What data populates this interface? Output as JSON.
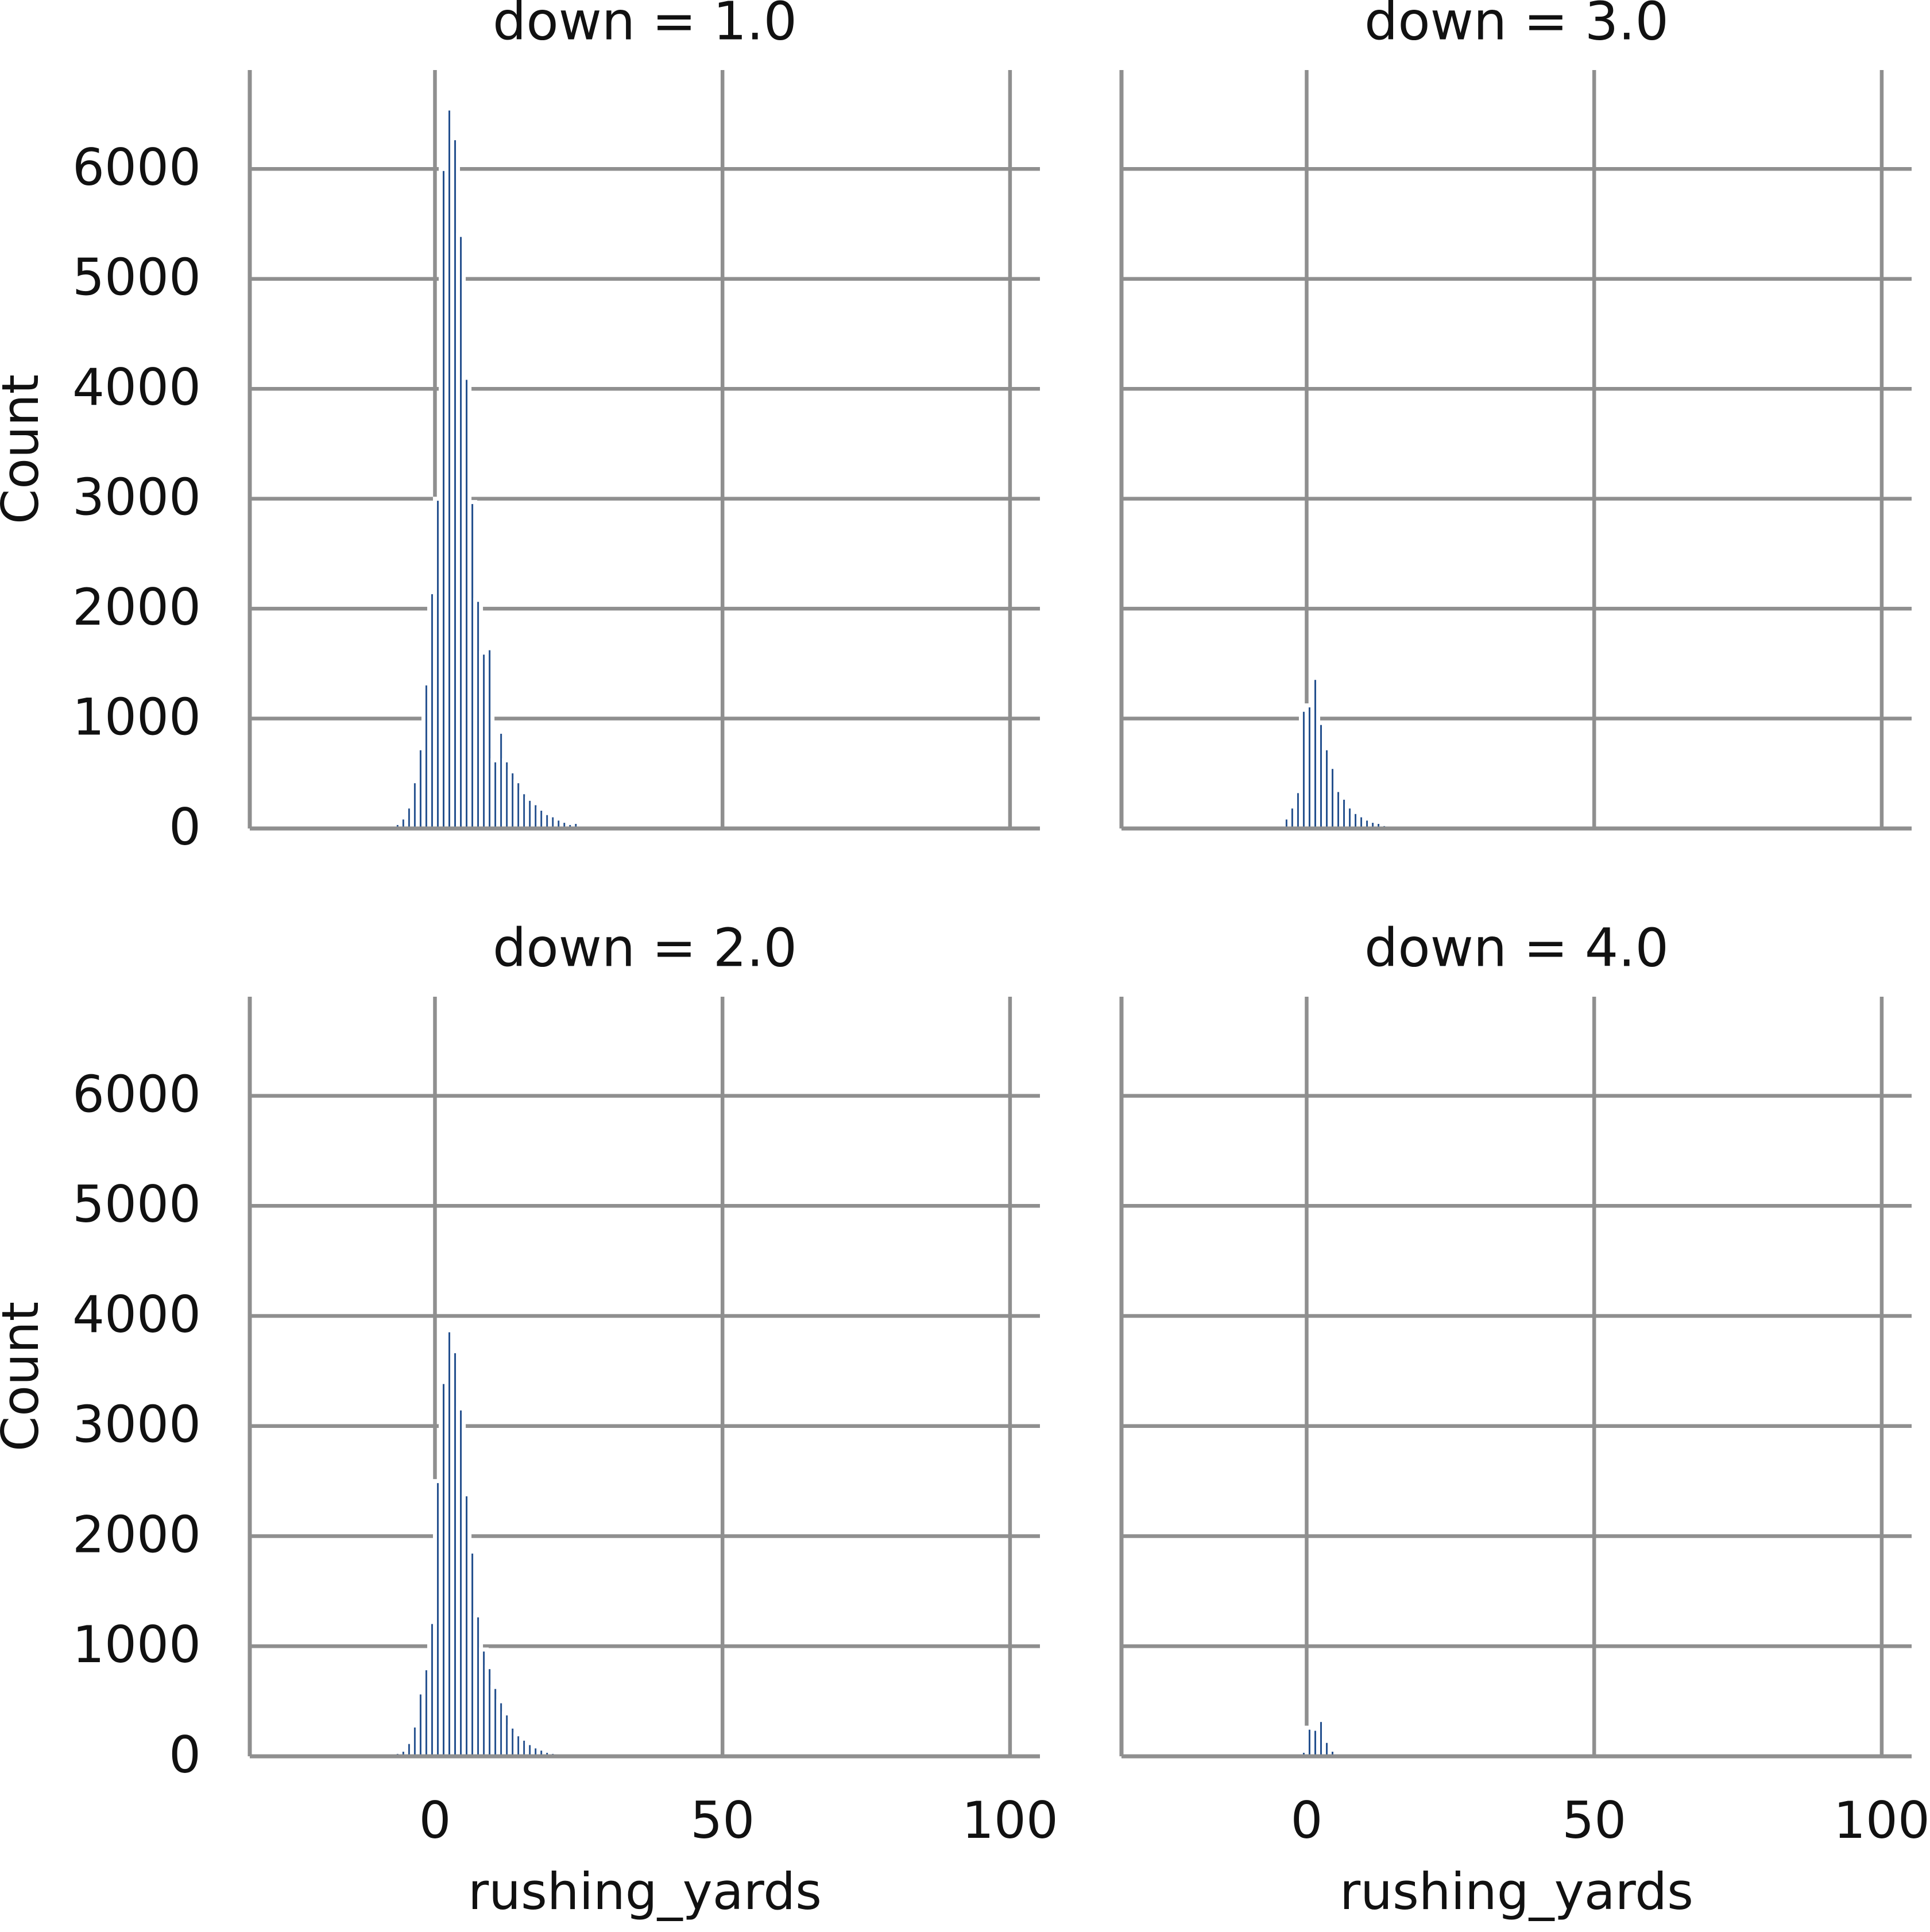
{
  "chart_data": [
    {
      "type": "histogram",
      "title": "down = 1.0",
      "color": "#24508e",
      "grid": true,
      "ylabel": "Count",
      "show_ytick_labels": true,
      "show_xtick_labels": false,
      "bins": [
        -8,
        -7,
        -6,
        -5,
        -4,
        -3,
        -2,
        -1,
        0,
        1,
        2,
        3,
        4,
        5,
        6,
        7,
        8,
        9,
        10,
        11,
        12,
        13,
        14,
        15,
        16,
        17,
        18,
        19,
        20,
        21,
        22,
        23,
        24,
        25,
        26,
        27,
        28,
        29,
        30,
        31,
        32,
        33,
        34,
        35,
        36
      ],
      "counts": [
        20,
        50,
        100,
        200,
        430,
        730,
        1320,
        2150,
        3000,
        6000,
        6550,
        6280,
        5400,
        4100,
        2970,
        2080,
        1600,
        1640,
        620,
        880,
        620,
        520,
        430,
        330,
        270,
        230,
        180,
        140,
        120,
        90,
        70,
        50,
        60,
        30,
        25,
        25,
        20,
        15,
        12,
        10,
        8,
        6,
        5,
        4
      ],
      "xlim": [
        -32.2,
        105.2
      ],
      "ylim": [
        0,
        6900
      ],
      "xticks": [
        0,
        50,
        100
      ],
      "yticks": [
        0,
        1000,
        2000,
        3000,
        4000,
        5000,
        6000
      ]
    },
    {
      "type": "histogram",
      "title": "down = 3.0",
      "color": "#24508e",
      "grid": true,
      "show_ytick_labels": false,
      "show_xtick_labels": false,
      "bins": [
        -5,
        -4,
        -3,
        -2,
        -1,
        0,
        1,
        2,
        3,
        4,
        5,
        6,
        7,
        8,
        9,
        10,
        11,
        12,
        13,
        14,
        15,
        16,
        17
      ],
      "counts": [
        20,
        100,
        200,
        340,
        1080,
        1120,
        1370,
        960,
        730,
        560,
        350,
        280,
        200,
        150,
        120,
        90,
        70,
        60,
        40,
        30,
        20,
        10
      ],
      "xlim": [
        -32.2,
        105.2
      ],
      "ylim": [
        0,
        6900
      ],
      "xticks": [
        0,
        50,
        100
      ],
      "yticks": [
        0,
        1000,
        2000,
        3000,
        4000,
        5000,
        6000
      ]
    },
    {
      "type": "histogram",
      "title": "down = 2.0",
      "color": "#24508e",
      "grid": true,
      "ylabel": "Count",
      "xlabel": "rushing_yards",
      "show_ytick_labels": true,
      "show_xtick_labels": true,
      "bins": [
        -7,
        -6,
        -5,
        -4,
        -3,
        -2,
        -1,
        0,
        1,
        2,
        3,
        4,
        5,
        6,
        7,
        8,
        9,
        10,
        11,
        12,
        13,
        14,
        15,
        16,
        17,
        18,
        19,
        20,
        21,
        22,
        23,
        24,
        25,
        26,
        27
      ],
      "counts": [
        40,
        60,
        130,
        280,
        580,
        800,
        1220,
        2500,
        3400,
        3870,
        3680,
        3160,
        2380,
        1860,
        1280,
        970,
        810,
        630,
        500,
        390,
        270,
        200,
        160,
        120,
        90,
        70,
        50,
        40,
        30,
        20,
        15,
        10,
        8,
        5
      ],
      "xlim": [
        -32.2,
        105.2
      ],
      "ylim": [
        0,
        6900
      ],
      "xticks": [
        0,
        50,
        100
      ],
      "yticks": [
        0,
        1000,
        2000,
        3000,
        4000,
        5000,
        6000
      ]
    },
    {
      "type": "histogram",
      "title": "down = 4.0",
      "color": "#24508e",
      "grid": true,
      "xlabel": "rushing_yards",
      "show_ytick_labels": false,
      "show_xtick_labels": true,
      "bins": [
        -2,
        -1,
        0,
        1,
        2,
        3,
        4,
        5,
        6
      ],
      "counts": [
        10,
        50,
        260,
        250,
        330,
        140,
        60,
        30
      ],
      "xlim": [
        -32.2,
        105.2
      ],
      "ylim": [
        0,
        6900
      ],
      "xticks": [
        0,
        50,
        100
      ],
      "yticks": [
        0,
        1000,
        2000,
        3000,
        4000,
        5000,
        6000
      ]
    }
  ]
}
